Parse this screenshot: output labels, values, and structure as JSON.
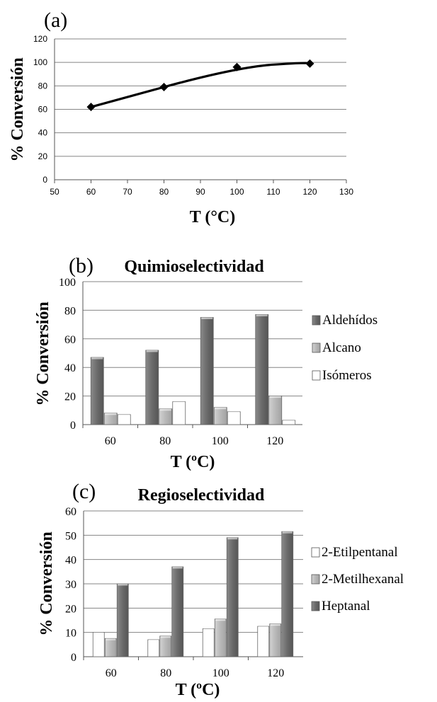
{
  "colors": {
    "dark_bar": "#6b6b6b",
    "light_bar": "#b9b9b9",
    "white_bar": "#ffffff",
    "grid": "#858585",
    "line": "#000000"
  },
  "chart_data": [
    {
      "panel_label": "(a)",
      "type": "line",
      "title": "",
      "xlabel": "T (°C)",
      "ylabel": "% Conversión",
      "xlim": [
        50,
        130
      ],
      "ylim": [
        0,
        120
      ],
      "xticks": [
        "50",
        "60",
        "70",
        "80",
        "90",
        "100",
        "110",
        "120",
        "130"
      ],
      "yticks": [
        "0",
        "20",
        "40",
        "60",
        "80",
        "100",
        "120"
      ],
      "grid": true,
      "x": [
        60,
        80,
        100,
        120
      ],
      "series": [
        {
          "values": [
            62,
            79,
            96,
            99
          ]
        }
      ]
    },
    {
      "panel_label": "(b)",
      "type": "bar",
      "title": "Quimioselectividad",
      "xlabel": "T (ºC)",
      "ylabel": "% Conversión",
      "ylim": [
        0,
        100
      ],
      "yticks": [
        "0",
        "20",
        "40",
        "60",
        "80",
        "100"
      ],
      "grid": true,
      "legend_position": "right",
      "categories": [
        "60",
        "80",
        "100",
        "120"
      ],
      "series": [
        {
          "name": "Aldehídos",
          "values": [
            47,
            52,
            75,
            77
          ]
        },
        {
          "name": "Alcano",
          "values": [
            8,
            11,
            12,
            20
          ]
        },
        {
          "name": "Isómeros",
          "values": [
            7,
            16,
            9,
            3
          ]
        }
      ]
    },
    {
      "panel_label": "(c)",
      "type": "bar",
      "title": "Regioselectividad",
      "xlabel": "T (ºC)",
      "ylabel": "% Conversión",
      "ylim": [
        0,
        60
      ],
      "yticks": [
        "0",
        "10",
        "20",
        "30",
        "40",
        "50",
        "60"
      ],
      "grid": true,
      "legend_position": "right",
      "categories": [
        "60",
        "80",
        "100",
        "120"
      ],
      "series": [
        {
          "name": "2-Etilpentanal",
          "values": [
            10,
            7,
            11.5,
            12.5
          ]
        },
        {
          "name": "2-Metilhexanal",
          "values": [
            7.5,
            8.5,
            15.5,
            13.5
          ]
        },
        {
          "name": "Heptanal",
          "values": [
            30,
            37,
            49,
            51.5
          ]
        }
      ]
    }
  ]
}
